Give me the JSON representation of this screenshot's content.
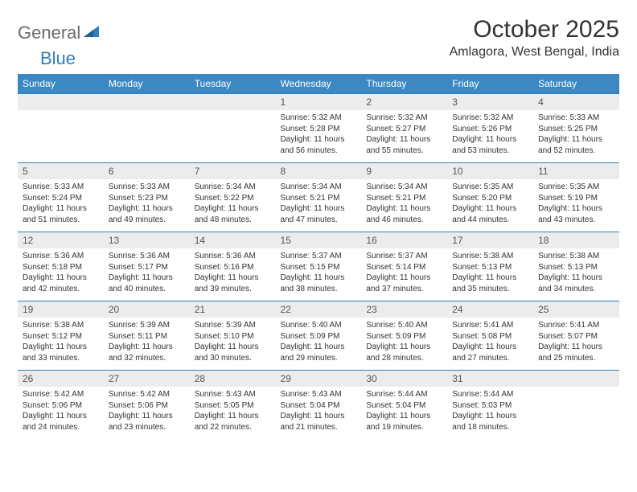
{
  "logo": {
    "text_general": "General",
    "text_blue": "Blue",
    "icon_color": "#2d7fc1"
  },
  "title": "October 2025",
  "location": "Amlagora, West Bengal, India",
  "colors": {
    "header_bg": "#3b88c3",
    "header_text": "#ffffff",
    "daynum_bg": "#ececec",
    "daynum_text": "#555555",
    "body_text": "#333333",
    "row_border": "#2d7fc1",
    "logo_gray": "#6b6b6b",
    "logo_blue": "#2d7fc1"
  },
  "day_headers": [
    "Sunday",
    "Monday",
    "Tuesday",
    "Wednesday",
    "Thursday",
    "Friday",
    "Saturday"
  ],
  "weeks": [
    [
      {
        "n": "",
        "sr": "",
        "ss": "",
        "dl": ""
      },
      {
        "n": "",
        "sr": "",
        "ss": "",
        "dl": ""
      },
      {
        "n": "",
        "sr": "",
        "ss": "",
        "dl": ""
      },
      {
        "n": "1",
        "sr": "5:32 AM",
        "ss": "5:28 PM",
        "dl": "11 hours and 56 minutes."
      },
      {
        "n": "2",
        "sr": "5:32 AM",
        "ss": "5:27 PM",
        "dl": "11 hours and 55 minutes."
      },
      {
        "n": "3",
        "sr": "5:32 AM",
        "ss": "5:26 PM",
        "dl": "11 hours and 53 minutes."
      },
      {
        "n": "4",
        "sr": "5:33 AM",
        "ss": "5:25 PM",
        "dl": "11 hours and 52 minutes."
      }
    ],
    [
      {
        "n": "5",
        "sr": "5:33 AM",
        "ss": "5:24 PM",
        "dl": "11 hours and 51 minutes."
      },
      {
        "n": "6",
        "sr": "5:33 AM",
        "ss": "5:23 PM",
        "dl": "11 hours and 49 minutes."
      },
      {
        "n": "7",
        "sr": "5:34 AM",
        "ss": "5:22 PM",
        "dl": "11 hours and 48 minutes."
      },
      {
        "n": "8",
        "sr": "5:34 AM",
        "ss": "5:21 PM",
        "dl": "11 hours and 47 minutes."
      },
      {
        "n": "9",
        "sr": "5:34 AM",
        "ss": "5:21 PM",
        "dl": "11 hours and 46 minutes."
      },
      {
        "n": "10",
        "sr": "5:35 AM",
        "ss": "5:20 PM",
        "dl": "11 hours and 44 minutes."
      },
      {
        "n": "11",
        "sr": "5:35 AM",
        "ss": "5:19 PM",
        "dl": "11 hours and 43 minutes."
      }
    ],
    [
      {
        "n": "12",
        "sr": "5:36 AM",
        "ss": "5:18 PM",
        "dl": "11 hours and 42 minutes."
      },
      {
        "n": "13",
        "sr": "5:36 AM",
        "ss": "5:17 PM",
        "dl": "11 hours and 40 minutes."
      },
      {
        "n": "14",
        "sr": "5:36 AM",
        "ss": "5:16 PM",
        "dl": "11 hours and 39 minutes."
      },
      {
        "n": "15",
        "sr": "5:37 AM",
        "ss": "5:15 PM",
        "dl": "11 hours and 38 minutes."
      },
      {
        "n": "16",
        "sr": "5:37 AM",
        "ss": "5:14 PM",
        "dl": "11 hours and 37 minutes."
      },
      {
        "n": "17",
        "sr": "5:38 AM",
        "ss": "5:13 PM",
        "dl": "11 hours and 35 minutes."
      },
      {
        "n": "18",
        "sr": "5:38 AM",
        "ss": "5:13 PM",
        "dl": "11 hours and 34 minutes."
      }
    ],
    [
      {
        "n": "19",
        "sr": "5:38 AM",
        "ss": "5:12 PM",
        "dl": "11 hours and 33 minutes."
      },
      {
        "n": "20",
        "sr": "5:39 AM",
        "ss": "5:11 PM",
        "dl": "11 hours and 32 minutes."
      },
      {
        "n": "21",
        "sr": "5:39 AM",
        "ss": "5:10 PM",
        "dl": "11 hours and 30 minutes."
      },
      {
        "n": "22",
        "sr": "5:40 AM",
        "ss": "5:09 PM",
        "dl": "11 hours and 29 minutes."
      },
      {
        "n": "23",
        "sr": "5:40 AM",
        "ss": "5:09 PM",
        "dl": "11 hours and 28 minutes."
      },
      {
        "n": "24",
        "sr": "5:41 AM",
        "ss": "5:08 PM",
        "dl": "11 hours and 27 minutes."
      },
      {
        "n": "25",
        "sr": "5:41 AM",
        "ss": "5:07 PM",
        "dl": "11 hours and 25 minutes."
      }
    ],
    [
      {
        "n": "26",
        "sr": "5:42 AM",
        "ss": "5:06 PM",
        "dl": "11 hours and 24 minutes."
      },
      {
        "n": "27",
        "sr": "5:42 AM",
        "ss": "5:06 PM",
        "dl": "11 hours and 23 minutes."
      },
      {
        "n": "28",
        "sr": "5:43 AM",
        "ss": "5:05 PM",
        "dl": "11 hours and 22 minutes."
      },
      {
        "n": "29",
        "sr": "5:43 AM",
        "ss": "5:04 PM",
        "dl": "11 hours and 21 minutes."
      },
      {
        "n": "30",
        "sr": "5:44 AM",
        "ss": "5:04 PM",
        "dl": "11 hours and 19 minutes."
      },
      {
        "n": "31",
        "sr": "5:44 AM",
        "ss": "5:03 PM",
        "dl": "11 hours and 18 minutes."
      },
      {
        "n": "",
        "sr": "",
        "ss": "",
        "dl": ""
      }
    ]
  ],
  "labels": {
    "sunrise": "Sunrise: ",
    "sunset": "Sunset: ",
    "daylight": "Daylight: "
  }
}
